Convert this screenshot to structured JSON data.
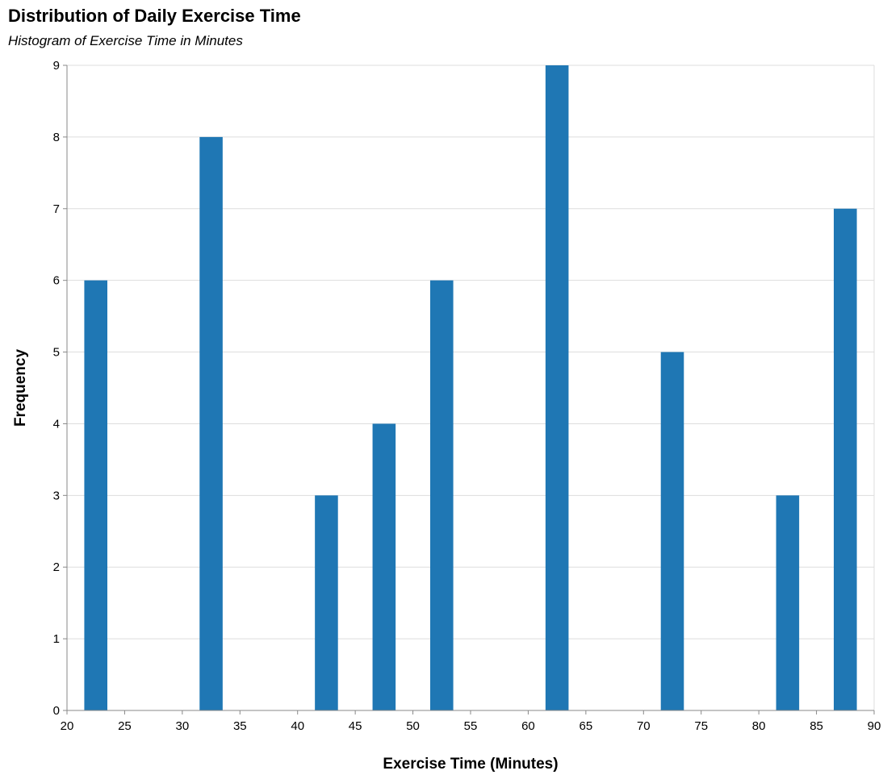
{
  "chart_data": {
    "type": "bar",
    "title": "Distribution of Daily Exercise Time",
    "subtitle": "Histogram of Exercise Time in Minutes",
    "xlabel": "Exercise Time (Minutes)",
    "ylabel": "Frequency",
    "xlim": [
      20,
      90
    ],
    "ylim": [
      0,
      9
    ],
    "x_ticks": [
      "20",
      "25",
      "30",
      "35",
      "40",
      "45",
      "50",
      "55",
      "60",
      "65",
      "70",
      "75",
      "80",
      "85",
      "90"
    ],
    "y_ticks": [
      "0",
      "1",
      "2",
      "3",
      "4",
      "5",
      "6",
      "7",
      "8",
      "9"
    ],
    "grid": true,
    "color": "#1f77b4",
    "bins": [
      {
        "start": 21.5,
        "end": 23.5,
        "count": 6
      },
      {
        "start": 31.5,
        "end": 33.5,
        "count": 8
      },
      {
        "start": 41.5,
        "end": 43.5,
        "count": 3
      },
      {
        "start": 46.5,
        "end": 48.5,
        "count": 4
      },
      {
        "start": 51.5,
        "end": 53.5,
        "count": 6
      },
      {
        "start": 61.5,
        "end": 63.5,
        "count": 9
      },
      {
        "start": 71.5,
        "end": 73.5,
        "count": 5
      },
      {
        "start": 81.5,
        "end": 83.5,
        "count": 3
      },
      {
        "start": 86.5,
        "end": 88.5,
        "count": 7
      }
    ]
  }
}
